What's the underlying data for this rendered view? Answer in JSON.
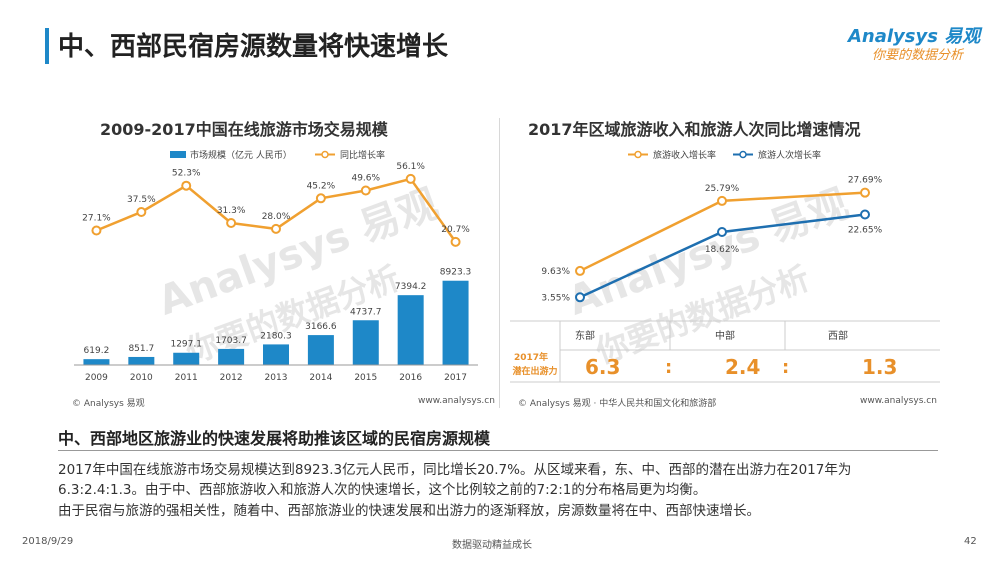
{
  "header": {
    "title": "中、西部民宿房源数量将快速增长",
    "logo_main": "Analysys 易观",
    "logo_sub": "你要的数据分析"
  },
  "watermark": {
    "main": "Analysys 易观",
    "sub": "你要的数据分析"
  },
  "left_chart_title": "2009-2017中国在线旅游市场交易规模",
  "right_chart_title": "2017年区域旅游收入和旅游人次同比增速情况",
  "chart_data": [
    {
      "type": "bar",
      "title": "2009-2017中国在线旅游市场交易规模",
      "categories": [
        "2009",
        "2010",
        "2011",
        "2012",
        "2013",
        "2014",
        "2015",
        "2016",
        "2017"
      ],
      "series": [
        {
          "name": "市场规模（亿元 人民币）",
          "type": "bar",
          "color": "#1e88c8",
          "values": [
            619.2,
            851.7,
            1297.1,
            1703.7,
            2180.3,
            3166.6,
            4737.7,
            7394.2,
            8923.3
          ],
          "labels": [
            "619.2",
            "851.7",
            "1297.1",
            "1703.7",
            "2180.3",
            "3166.6",
            "4737.7",
            "7394.2",
            "8923.3"
          ]
        },
        {
          "name": "同比增长率",
          "type": "line",
          "color": "#f0a030",
          "values": [
            27.1,
            37.5,
            52.3,
            31.3,
            28.0,
            45.2,
            49.6,
            56.1,
            20.7
          ],
          "labels": [
            "27.1%",
            "37.5%",
            "52.3%",
            "31.3%",
            "28.0%",
            "45.2%",
            "49.6%",
            "56.1%",
            "20.7%"
          ]
        }
      ],
      "legend": "top",
      "grid": false
    },
    {
      "type": "line",
      "title": "2017年区域旅游收入和旅游人次同比增速情况",
      "categories": [
        "东部",
        "中部",
        "西部"
      ],
      "series": [
        {
          "name": "旅游收入增长率",
          "color": "#f0a030",
          "values": [
            9.63,
            25.79,
            27.69
          ],
          "labels": [
            "9.63%",
            "25.79%",
            "27.69%"
          ]
        },
        {
          "name": "旅游人次增长率",
          "color": "#1e6fb0",
          "values": [
            3.55,
            18.62,
            22.65
          ],
          "labels": [
            "3.55%",
            "18.62%",
            "22.65%"
          ]
        }
      ],
      "legend": "top",
      "grid": false
    }
  ],
  "potential_table": {
    "row_label_1": "2017年",
    "row_label_2": "潜在出游力",
    "regions": [
      "东部",
      "中部",
      "西部"
    ],
    "values": [
      "6.3",
      "2.4",
      "1.3"
    ],
    "sep": ":"
  },
  "sources": {
    "left": "© Analysys 易观",
    "left_site": "www.analysys.cn",
    "right": "© Analysys 易观 · 中华人民共和国文化和旅游部",
    "right_site": "www.analysys.cn"
  },
  "section_heading": "中、西部地区旅游业的快速发展将助推该区域的民宿房源规模",
  "paragraphs": [
    "2017年中国在线旅游市场交易规模达到8923.3亿元人民币，同比增长20.7%。从区域来看，东、中、西部的潜在出游力在2017年为",
    "6.3:2.4:1.3。由于中、西部旅游收入和旅游人次的快速增长，这个比例较之前的7:2:1的分布格局更为均衡。",
    "由于民宿与旅游的强相关性，随着中、西部旅游业的快速发展和出游力的逐渐释放，房源数量将在中、西部快速增长。"
  ],
  "footer": {
    "date": "2018/9/29",
    "slogan": "数据驱动精益成长",
    "page": "42"
  }
}
